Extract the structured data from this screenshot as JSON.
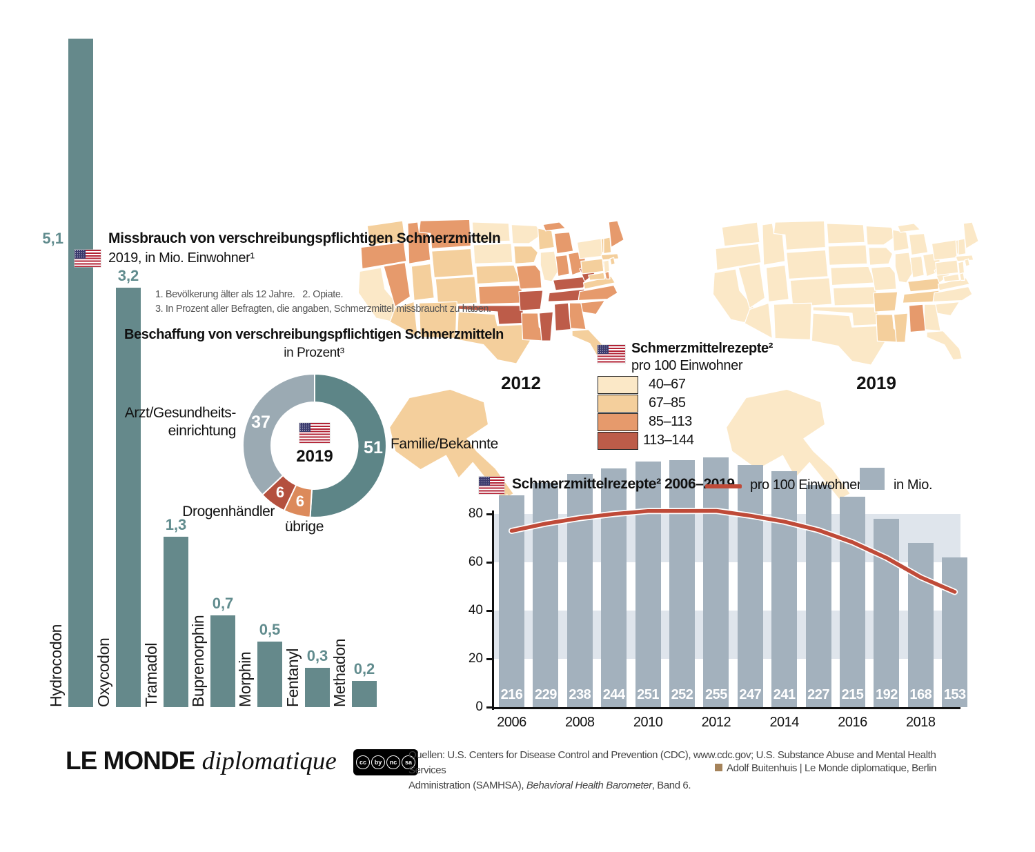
{
  "colors": {
    "teal_bar": "#65898b",
    "teal_label": "#618c8e",
    "donut_teal": "#5d8587",
    "donut_gray": "#9baab3",
    "donut_red": "#b4503e",
    "donut_orange": "#dc8a5b",
    "rx_bar": "#a3b1bd",
    "rx_band": "#dfe5ec",
    "rx_line": "#bf4a38",
    "map_cat1": "#fbe8c7",
    "map_cat2": "#f4cf9c",
    "map_cat3": "#e69a6c",
    "map_cat4": "#bd5c49",
    "credit_square": "#a5835a"
  },
  "misuse": {
    "title": "Missbrauch von verschreibungspflichtigen Schmerzmitteln",
    "subtitle": "2019, in Mio. Einwohner¹"
  },
  "footnotes": "1. Bevölkerung älter als 12 Jahre.   2. Opiate.\n3. In Prozent aller Befragten, die angaben, Schmerzmittel missbraucht zu haben.",
  "donut": {
    "title": "Beschaffung von verschreibungspflichtigen Schmerzmitteln",
    "subtitle": "in Prozent³",
    "center_year": "2019",
    "label_arzt": "Arzt/Gesundheits-\neinrichtung",
    "label_familie": "Familie/Bekannte",
    "label_drogen": "Drogenhändler",
    "label_uebrige": "übrige"
  },
  "map_legend": {
    "title": "Schmerzmittelrezepte²",
    "subtitle": "pro 100 Einwohner",
    "items": [
      {
        "label": "40–67",
        "color": "#fbe8c7"
      },
      {
        "label": "67–85",
        "color": "#f4cf9c"
      },
      {
        "label": "85–113",
        "color": "#e69a6c"
      },
      {
        "label": "113–144",
        "color": "#bd5c49"
      }
    ],
    "year_left": "2012",
    "year_right": "2019"
  },
  "rx": {
    "title": "Schmerzmittelrezepte² 2006–2019",
    "legend_line": "pro 100 Einwohner",
    "legend_bar": "in Mio."
  },
  "footer": {
    "logo_main": "LE MONDE",
    "logo_sub": "diplomatique",
    "cc_icons": [
      "cc",
      "by",
      "nc",
      "sa"
    ],
    "sources_line1": "Quellen: U.S. Centers for Disease Control and Prevention (CDC), www.cdc.gov; U.S. Substance Abuse and Mental Health Services",
    "sources_line2_pre": "Administration (SAMHSA), ",
    "sources_line2_italic": "Behavioral Health Barometer",
    "sources_line2_post": ", Band 6.",
    "credit": "Adolf Buitenhuis | Le Monde diplomatique, Berlin"
  },
  "chart_data": [
    {
      "type": "bar",
      "title": "Missbrauch von verschreibungspflichtigen Schmerzmitteln",
      "subtitle": "2019, in Mio. Einwohner¹",
      "categories": [
        "Hydrocodon",
        "Oxycodon",
        "Tramadol",
        "Buprenorphin",
        "Morphin",
        "Fentanyl",
        "Methadon"
      ],
      "values": [
        5.1,
        3.2,
        1.3,
        0.7,
        0.5,
        0.3,
        0.2
      ],
      "value_labels": [
        "5,1",
        "3,2",
        "1,3",
        "0,7",
        "0,5",
        "0,3",
        "0,2"
      ],
      "bar_color": "#65898b",
      "label_color": "#618c8e"
    },
    {
      "type": "pie",
      "title": "Beschaffung von verschreibungspflichtigen Schmerzmitteln in Prozent³",
      "center_label": "2019",
      "slices": [
        {
          "label": "Familie/Bekannte",
          "value": 51,
          "color": "#5d8587"
        },
        {
          "label": "übrige",
          "value": 6,
          "color": "#dc8a5b"
        },
        {
          "label": "Drogenhändler",
          "value": 6,
          "color": "#b4503e"
        },
        {
          "label": "Arzt/Gesundheitseinrichtung",
          "value": 37,
          "color": "#9baab3"
        }
      ]
    },
    {
      "type": "heatmap",
      "title": "Schmerzmittelrezepte² pro 100 Einwohner, 2012",
      "year": "2012",
      "categories": [
        "40–67",
        "67–85",
        "85–113",
        "113–144"
      ],
      "states": {
        "WA": 2,
        "OR": 3,
        "CA": 1,
        "NV": 3,
        "ID": 3,
        "MT": 3,
        "WY": 2,
        "UT": 2,
        "CO": 2,
        "AZ": 2,
        "NM": 2,
        "ND": 1,
        "SD": 1,
        "NE": 2,
        "KS": 3,
        "OK": 4,
        "TX": 2,
        "MN": 1,
        "IA": 2,
        "MO": 3,
        "AR": 4,
        "LA": 3,
        "WI": 2,
        "IL": 1,
        "MS": 4,
        "MI": 3,
        "IN": 3,
        "OH": 3,
        "KY": 4,
        "TN": 4,
        "WV": 4,
        "VA": 2,
        "NC": 3,
        "SC": 3,
        "GA": 3,
        "AL": 4,
        "FL": 2,
        "ME": 3,
        "NH": 2,
        "VT": 2,
        "NY": 1,
        "MA": 2,
        "CT": 2,
        "RI": 2,
        "PA": 2,
        "NJ": 1,
        "MD": 2,
        "DE": 3,
        "AK": 2,
        "HI": 1
      }
    },
    {
      "type": "heatmap",
      "title": "Schmerzmittelrezepte² pro 100 Einwohner, 2019",
      "year": "2019",
      "categories": [
        "40–67",
        "67–85",
        "85–113",
        "113–144"
      ],
      "states": {
        "WA": 1,
        "OR": 1,
        "CA": 1,
        "NV": 1,
        "ID": 1,
        "MT": 1,
        "WY": 1,
        "UT": 1,
        "CO": 1,
        "AZ": 1,
        "NM": 1,
        "ND": 1,
        "SD": 1,
        "NE": 1,
        "KS": 1,
        "OK": 1,
        "TX": 1,
        "MN": 1,
        "IA": 1,
        "MO": 1,
        "AR": 2,
        "LA": 2,
        "WI": 1,
        "IL": 1,
        "MS": 2,
        "MI": 1,
        "IN": 1,
        "OH": 1,
        "KY": 2,
        "TN": 2,
        "WV": 1,
        "VA": 1,
        "NC": 1,
        "SC": 1,
        "GA": 1,
        "AL": 3,
        "FL": 1,
        "ME": 1,
        "NH": 1,
        "VT": 1,
        "NY": 1,
        "MA": 1,
        "CT": 1,
        "RI": 1,
        "PA": 1,
        "NJ": 1,
        "MD": 1,
        "DE": 1,
        "AK": 1,
        "HI": 1
      }
    },
    {
      "type": "bar+line",
      "title": "Schmerzmittelrezepte² 2006–2019",
      "x": [
        2006,
        2007,
        2008,
        2009,
        2010,
        2011,
        2012,
        2013,
        2014,
        2015,
        2016,
        2017,
        2018,
        2019
      ],
      "x_tick_labels": [
        "2006",
        "2008",
        "2010",
        "2012",
        "2014",
        "2016",
        "2018"
      ],
      "series": [
        {
          "name": "in Mio.",
          "type": "bar",
          "values": [
            216,
            229,
            238,
            244,
            251,
            252,
            255,
            247,
            241,
            227,
            215,
            192,
            168,
            153
          ]
        },
        {
          "name": "pro 100 Einwohner",
          "type": "line",
          "values": [
            73,
            76,
            78.3,
            80,
            81.2,
            81.2,
            81.3,
            79.3,
            76.8,
            73.3,
            68.3,
            61.8,
            53.8,
            47.7
          ]
        }
      ],
      "y_ticks": [
        0,
        20,
        40,
        60,
        80
      ],
      "ylim_line": [
        0,
        80
      ],
      "bands": [
        [
          20,
          40
        ],
        [
          60,
          80
        ]
      ]
    }
  ]
}
